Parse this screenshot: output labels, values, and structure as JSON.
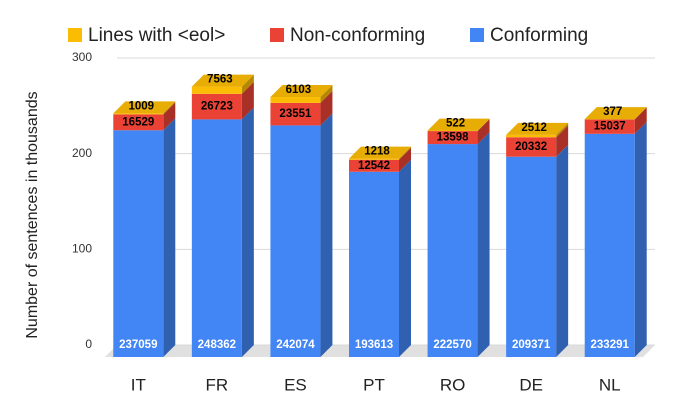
{
  "chart_data": {
    "type": "bar3d_stacked",
    "y_label": "Number of sentences in thousands",
    "categories": [
      "IT",
      "FR",
      "ES",
      "PT",
      "RO",
      "DE",
      "NL"
    ],
    "series": [
      {
        "name": "Conforming",
        "color": "#4285f4",
        "values": [
          237.059,
          248.362,
          242.074,
          193.613,
          222.57,
          209.371,
          233.291
        ],
        "value_labels": [
          "237059",
          "248362",
          "242074",
          "193613",
          "222570",
          "209371",
          "233291"
        ]
      },
      {
        "name": "Non-conforming",
        "color": "#ea4335",
        "values": [
          16.529,
          26.723,
          23.551,
          12.542,
          13.598,
          20.332,
          15.037
        ],
        "value_labels": [
          "16529",
          "26723",
          "23551",
          "12542",
          "13598",
          "20332",
          "15037"
        ]
      },
      {
        "name": "Lines with <eol>",
        "color": "#fbbc04",
        "values": [
          1.009,
          7.563,
          6.103,
          1.218,
          0.522,
          2.512,
          0.377
        ],
        "value_labels": [
          "1009",
          "7563",
          "6103",
          "1218",
          "522",
          "2512",
          "377"
        ]
      }
    ],
    "ylim": [
      0,
      300
    ],
    "yticks": [
      0,
      100,
      200,
      300
    ],
    "grid": true
  }
}
